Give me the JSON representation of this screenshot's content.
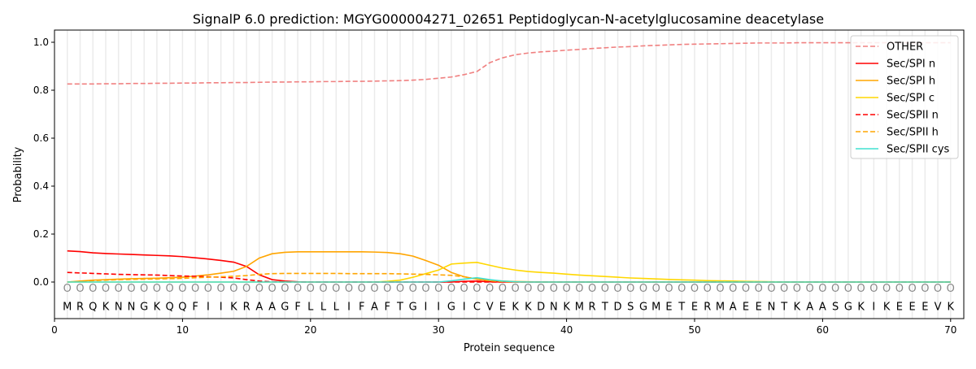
{
  "chart_data": {
    "type": "line",
    "title": "SignalP 6.0 prediction: MGYG000004271_02651 Peptidoglycan-N-acetylglucosamine deacetylase",
    "xlabel": "Protein sequence",
    "ylabel": "Probability",
    "xlim": [
      0,
      71.03
    ],
    "ylim": [
      -0.1525,
      1.0508
    ],
    "xticks": [
      0,
      10,
      20,
      30,
      40,
      50,
      60,
      70
    ],
    "yticks": [
      0.0,
      0.2,
      0.4,
      0.6,
      0.8,
      1.0
    ],
    "ytick_labels": [
      "0.0",
      "0.2",
      "0.4",
      "0.6",
      "0.8",
      "1.0"
    ],
    "legend_position": "top-right",
    "sequence": [
      "M",
      "R",
      "Q",
      "K",
      "N",
      "N",
      "G",
      "K",
      "Q",
      "Q",
      "F",
      "I",
      "I",
      "K",
      "R",
      "A",
      "A",
      "G",
      "F",
      "L",
      "L",
      "L",
      "I",
      "F",
      "A",
      "F",
      "T",
      "G",
      "I",
      "I",
      "G",
      "I",
      "C",
      "V",
      "E",
      "K",
      "K",
      "D",
      "N",
      "K",
      "M",
      "R",
      "T",
      "D",
      "S",
      "G",
      "M",
      "E",
      "T",
      "E",
      "R",
      "M",
      "A",
      "E",
      "E",
      "N",
      "T",
      "K",
      "A",
      "A",
      "S",
      "G",
      "K",
      "I",
      "K",
      "E",
      "E",
      "E",
      "V",
      "K"
    ],
    "region_marker": "O",
    "series": [
      {
        "name": "OTHER",
        "color": "#f08080",
        "dash": true,
        "values": [
          0.826,
          0.826,
          0.826,
          0.827,
          0.827,
          0.828,
          0.828,
          0.829,
          0.829,
          0.83,
          0.83,
          0.831,
          0.831,
          0.832,
          0.832,
          0.833,
          0.834,
          0.834,
          0.835,
          0.835,
          0.836,
          0.836,
          0.837,
          0.837,
          0.838,
          0.839,
          0.84,
          0.842,
          0.845,
          0.85,
          0.855,
          0.865,
          0.878,
          0.915,
          0.935,
          0.948,
          0.955,
          0.96,
          0.963,
          0.967,
          0.97,
          0.974,
          0.977,
          0.98,
          0.982,
          0.985,
          0.987,
          0.989,
          0.991,
          0.992,
          0.993,
          0.994,
          0.995,
          0.996,
          0.997,
          0.997,
          0.997,
          0.998,
          0.998,
          0.998,
          0.998,
          0.998,
          0.998,
          0.998,
          0.998,
          0.998,
          0.998,
          0.998,
          0.998,
          0.998
        ]
      },
      {
        "name": "Sec/SPI n",
        "color": "#ff0000",
        "dash": false,
        "values": [
          0.13,
          0.127,
          0.122,
          0.119,
          0.117,
          0.115,
          0.113,
          0.111,
          0.109,
          0.106,
          0.101,
          0.096,
          0.09,
          0.083,
          0.065,
          0.03,
          0.01,
          0.004,
          0.001,
          0,
          0,
          0,
          0,
          0,
          0,
          0,
          0,
          0,
          0,
          0,
          0,
          0.003,
          0.004,
          0.001,
          0,
          0,
          0,
          0,
          0,
          0,
          0,
          0,
          0,
          0,
          0,
          0,
          0,
          0,
          0,
          0,
          0,
          0,
          0,
          0,
          0,
          0,
          0,
          0,
          0,
          0,
          0,
          0,
          0,
          0,
          0,
          0,
          0,
          0,
          0,
          0
        ]
      },
      {
        "name": "Sec/SPI h",
        "color": "#ffa500",
        "dash": false,
        "values": [
          0,
          0.004,
          0.008,
          0.01,
          0.012,
          0.014,
          0.015,
          0.016,
          0.018,
          0.02,
          0.025,
          0.03,
          0.037,
          0.045,
          0.065,
          0.1,
          0.118,
          0.124,
          0.126,
          0.126,
          0.126,
          0.126,
          0.126,
          0.126,
          0.125,
          0.123,
          0.118,
          0.108,
          0.09,
          0.07,
          0.04,
          0.022,
          0.012,
          0.007,
          0.004,
          0.002,
          0.001,
          0,
          0,
          0,
          0,
          0,
          0,
          0,
          0,
          0,
          0,
          0,
          0,
          0,
          0,
          0,
          0,
          0,
          0,
          0,
          0,
          0,
          0,
          0,
          0,
          0,
          0,
          0,
          0,
          0,
          0,
          0,
          0,
          0
        ]
      },
      {
        "name": "Sec/SPI c",
        "color": "#ffd700",
        "dash": false,
        "values": [
          0,
          0,
          0,
          0,
          0,
          0,
          0,
          0,
          0,
          0,
          0,
          0,
          0,
          0,
          0,
          0,
          0,
          0,
          0,
          0,
          0,
          0,
          0,
          0,
          0,
          0.003,
          0.008,
          0.02,
          0.035,
          0.05,
          0.075,
          0.079,
          0.082,
          0.07,
          0.058,
          0.05,
          0.044,
          0.04,
          0.037,
          0.033,
          0.029,
          0.026,
          0.023,
          0.02,
          0.017,
          0.015,
          0.013,
          0.011,
          0.009,
          0.008,
          0.006,
          0.005,
          0.004,
          0.003,
          0.002,
          0.001,
          0,
          0,
          0,
          0,
          0,
          0,
          0,
          0,
          0,
          0,
          0,
          0,
          0,
          0
        ]
      },
      {
        "name": "Sec/SPII n",
        "color": "#ff0000",
        "dash": true,
        "values": [
          0.04,
          0.038,
          0.036,
          0.034,
          0.032,
          0.031,
          0.03,
          0.029,
          0.027,
          0.025,
          0.024,
          0.022,
          0.02,
          0.017,
          0.01,
          0.004,
          0.001,
          0,
          0,
          0,
          0,
          0,
          0,
          0,
          0,
          0,
          0,
          0,
          0,
          0,
          0,
          0,
          0,
          0,
          0,
          0,
          0,
          0,
          0,
          0,
          0,
          0,
          0,
          0,
          0,
          0,
          0,
          0,
          0,
          0,
          0,
          0,
          0,
          0,
          0,
          0,
          0,
          0,
          0,
          0,
          0,
          0,
          0,
          0,
          0,
          0,
          0,
          0,
          0,
          0
        ]
      },
      {
        "name": "Sec/SPII h",
        "color": "#ffa500",
        "dash": true,
        "values": [
          0,
          0.003,
          0.006,
          0.008,
          0.01,
          0.011,
          0.012,
          0.013,
          0.014,
          0.015,
          0.018,
          0.02,
          0.022,
          0.024,
          0.027,
          0.032,
          0.035,
          0.036,
          0.036,
          0.036,
          0.036,
          0.036,
          0.035,
          0.035,
          0.035,
          0.035,
          0.034,
          0.033,
          0.032,
          0.03,
          0.028,
          0.022,
          0.012,
          0.005,
          0.002,
          0,
          0,
          0,
          0,
          0,
          0,
          0,
          0,
          0,
          0,
          0,
          0,
          0,
          0,
          0,
          0,
          0,
          0,
          0,
          0,
          0,
          0,
          0,
          0,
          0,
          0,
          0,
          0,
          0,
          0,
          0,
          0,
          0,
          0,
          0
        ]
      },
      {
        "name": "Sec/SPII cys",
        "color": "#40e0d0",
        "dash": false,
        "values": [
          0,
          0,
          0,
          0,
          0,
          0,
          0,
          0,
          0,
          0,
          0,
          0,
          0,
          0,
          0,
          0,
          0,
          0,
          0,
          0,
          0,
          0,
          0,
          0,
          0,
          0,
          0,
          0,
          0,
          0,
          0.005,
          0.012,
          0.018,
          0.01,
          0.004,
          0.001,
          0,
          0,
          0,
          0,
          0,
          0,
          0,
          0,
          0,
          0,
          0,
          0,
          0,
          0,
          0,
          0,
          0,
          0,
          0,
          0,
          0,
          0,
          0,
          0,
          0,
          0,
          0,
          0,
          0,
          0,
          0,
          0,
          0,
          0
        ]
      }
    ]
  }
}
